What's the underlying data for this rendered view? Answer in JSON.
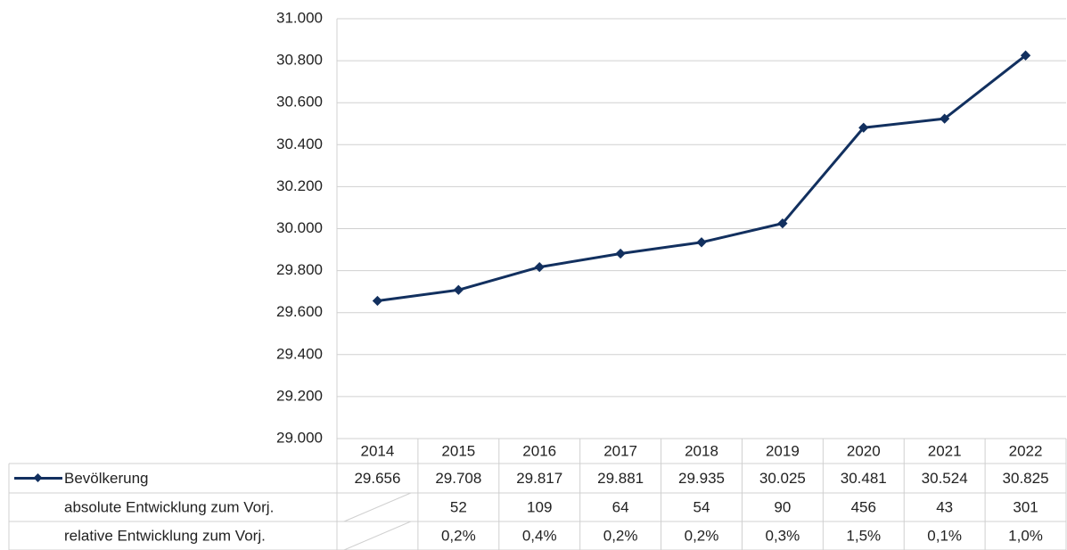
{
  "chart_data": {
    "type": "line",
    "categories": [
      "2014",
      "2015",
      "2016",
      "2017",
      "2018",
      "2019",
      "2020",
      "2021",
      "2022"
    ],
    "series": [
      {
        "name": "Bevölkerung",
        "color": "#12305f",
        "values": [
          29656,
          29708,
          29817,
          29881,
          29935,
          30025,
          30481,
          30524,
          30825
        ],
        "value_labels": [
          "29.656",
          "29.708",
          "29.817",
          "29.881",
          "29.935",
          "30.025",
          "30.481",
          "30.524",
          "30.825"
        ]
      }
    ],
    "table_rows": [
      {
        "name": "absolute Entwicklung zum Vorj.",
        "values": [
          null,
          52,
          109,
          64,
          54,
          90,
          456,
          43,
          301
        ]
      },
      {
        "name": "relative Entwicklung zum Vorj.",
        "values": [
          null,
          0.2,
          0.4,
          0.2,
          0.2,
          0.3,
          1.5,
          0.1,
          1.0
        ],
        "value_labels": [
          null,
          "0,2%",
          "0,4%",
          "0,2%",
          "0,2%",
          "0,3%",
          "1,5%",
          "0,1%",
          "1,0%"
        ]
      }
    ],
    "ylim": [
      29000,
      31000
    ],
    "yticks": [
      {
        "value": 29000,
        "label": "29.000"
      },
      {
        "value": 29200,
        "label": "29.200"
      },
      {
        "value": 29400,
        "label": "29.400"
      },
      {
        "value": 29600,
        "label": "29.600"
      },
      {
        "value": 29800,
        "label": "29.800"
      },
      {
        "value": 30000,
        "label": "30.000"
      },
      {
        "value": 30200,
        "label": "30.200"
      },
      {
        "value": 30400,
        "label": "30.400"
      },
      {
        "value": 30600,
        "label": "30.600"
      },
      {
        "value": 30800,
        "label": "30.800"
      },
      {
        "value": 31000,
        "label": "31.000"
      }
    ],
    "grid": true
  }
}
